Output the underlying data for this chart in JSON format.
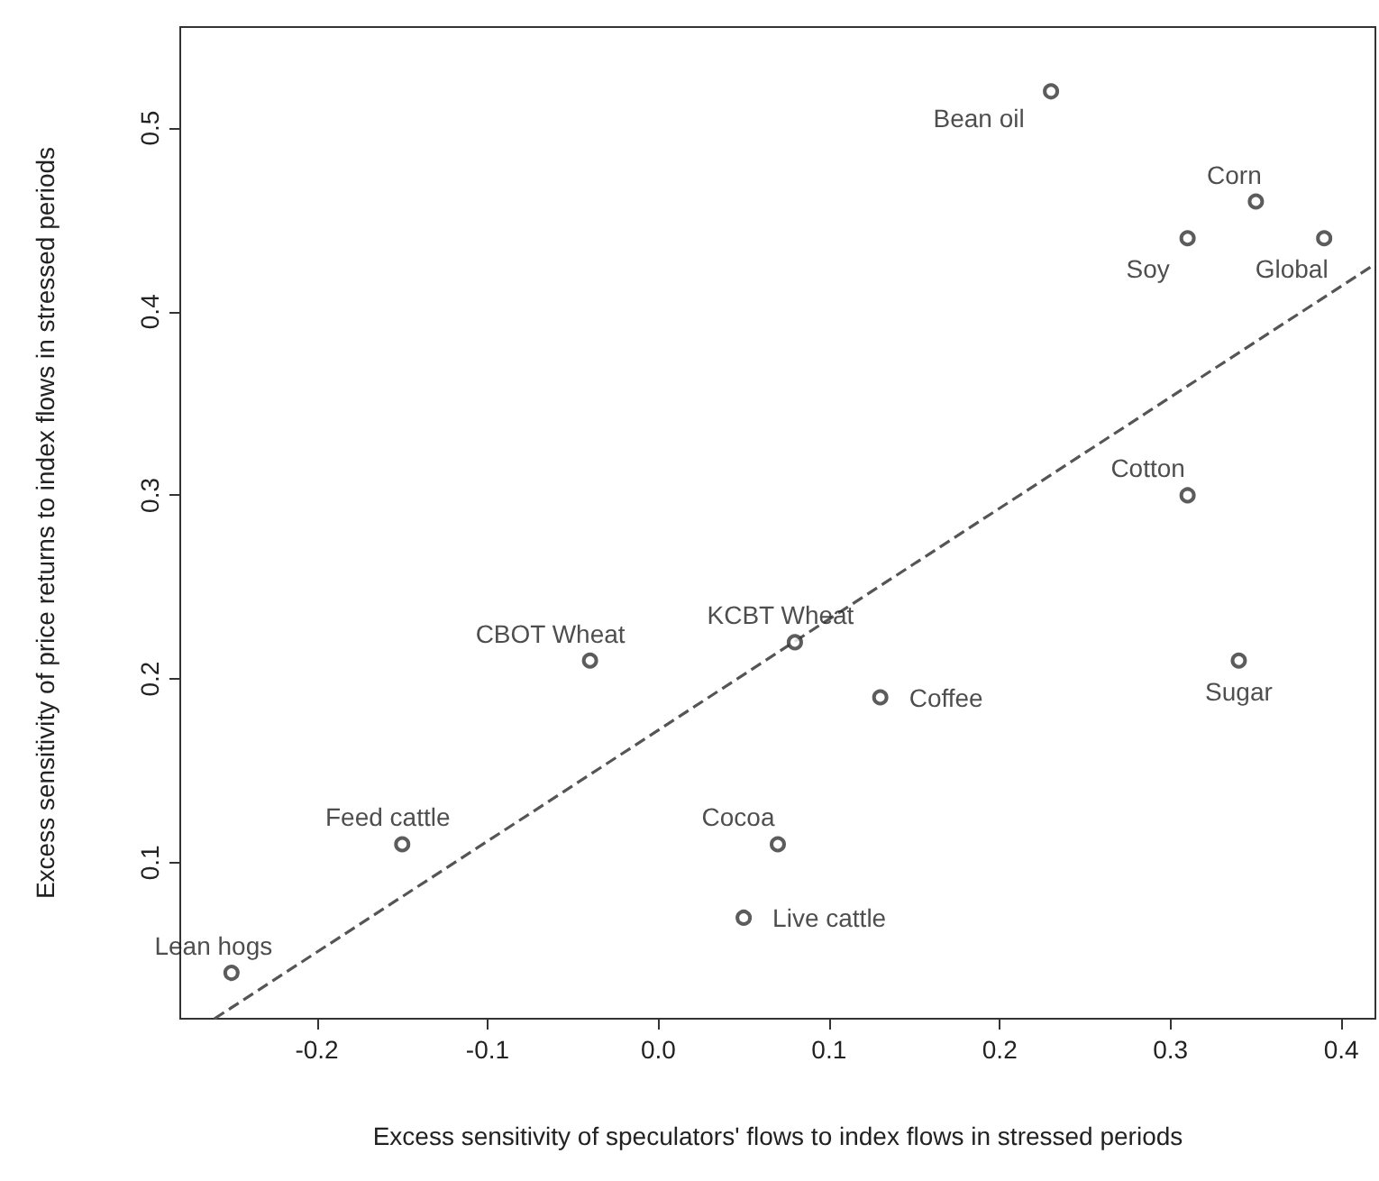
{
  "chart_data": {
    "type": "scatter",
    "xlabel": "Excess sensitivity of speculators' flows to index flows in stressed periods",
    "ylabel": "Excess sensitivity of price returns to index flows in stressed periods",
    "series": [
      {
        "color": "#333333",
        "x": [
          -0.25,
          -0.15,
          -0.04,
          0.08,
          0.13,
          0.07,
          0.05,
          0.23,
          0.35,
          0.31,
          0.39,
          0.31,
          0.34
        ],
        "values": [
          0.04,
          0.11,
          0.21,
          0.22,
          0.19,
          0.11,
          0.07,
          0.52,
          0.46,
          0.44,
          0.44,
          0.3,
          0.21
        ],
        "marker": "circle"
      },
      {
        "type": "line",
        "color": "#555555",
        "line_style": "dashed",
        "marker": "none",
        "x": [
          -0.26,
          0.42
        ],
        "values": [
          0.015,
          0.426
        ]
      }
    ],
    "annotations": [
      {
        "text": "Lean hogs",
        "x": -0.25,
        "y": 0.04
      },
      {
        "text": "Feed cattle",
        "x": -0.15,
        "y": 0.11
      },
      {
        "text": "CBOT Wheat",
        "x": -0.04,
        "y": 0.21
      },
      {
        "text": "KCBT Wheat",
        "x": 0.08,
        "y": 0.22
      },
      {
        "text": "Coffee",
        "x": 0.13,
        "y": 0.19
      },
      {
        "text": "Cocoa",
        "x": 0.07,
        "y": 0.11
      },
      {
        "text": "Live cattle",
        "x": 0.05,
        "y": 0.07
      },
      {
        "text": "Bean oil",
        "x": 0.23,
        "y": 0.52
      },
      {
        "text": "Corn",
        "x": 0.35,
        "y": 0.46
      },
      {
        "text": "Soy",
        "x": 0.31,
        "y": 0.44
      },
      {
        "text": "Global",
        "x": 0.39,
        "y": 0.44
      },
      {
        "text": "Cotton",
        "x": 0.31,
        "y": 0.3
      },
      {
        "text": "Sugar",
        "x": 0.34,
        "y": 0.21
      }
    ],
    "xlim": [
      -0.28,
      0.42
    ],
    "ylim": [
      0.015,
      0.555
    ],
    "xticks": [
      {
        "value": -0.2,
        "label": "-0.2"
      },
      {
        "value": -0.1,
        "label": "-0.1"
      },
      {
        "value": 0,
        "label": "0.0"
      },
      {
        "value": 0.1,
        "label": "0.1"
      },
      {
        "value": 0.2,
        "label": "0.2"
      },
      {
        "value": 0.3,
        "label": "0.3"
      },
      {
        "value": 0.4,
        "label": "0.4"
      }
    ],
    "yticks": [
      0.1,
      0.2,
      0.3,
      0.4,
      0.5
    ],
    "grid": false
  }
}
